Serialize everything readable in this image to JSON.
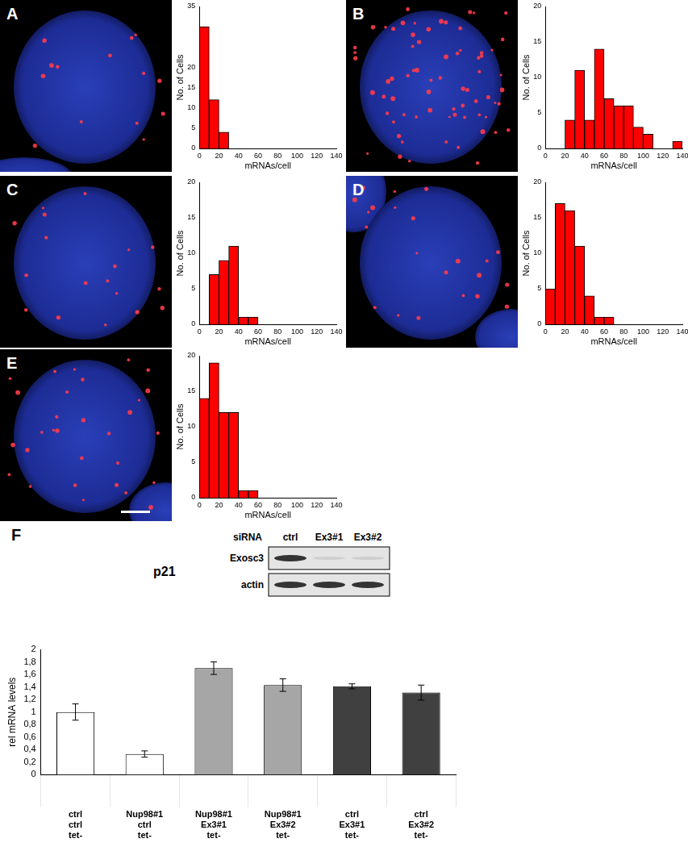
{
  "panel_labels": [
    "A",
    "B",
    "C",
    "D",
    "E",
    "F"
  ],
  "chart_data": [
    {
      "type": "histogram",
      "bins": [
        0,
        10,
        20,
        30,
        40,
        50,
        60,
        70,
        80,
        90,
        100,
        110,
        120,
        130,
        140
      ],
      "counts": [
        30,
        12,
        4,
        0,
        0,
        0,
        0,
        0,
        0,
        0,
        0,
        0,
        0,
        0
      ],
      "color": "#ff0000",
      "xlabel": "mRNAs/cell",
      "ylabel": "No. of Cells",
      "xlim": [
        0,
        140
      ],
      "xticks": [
        0,
        20,
        40,
        60,
        80,
        100,
        120,
        140
      ],
      "ylim": [
        0,
        35
      ],
      "yticks": [
        0,
        5,
        10,
        15,
        20,
        35
      ],
      "grid": false
    },
    {
      "type": "histogram",
      "bins": [
        0,
        10,
        20,
        30,
        40,
        50,
        60,
        70,
        80,
        90,
        100,
        110,
        120,
        130,
        140
      ],
      "counts": [
        0,
        0,
        4,
        11,
        4,
        14,
        7,
        6,
        6,
        3,
        2,
        0,
        0,
        1
      ],
      "color": "#ff0000",
      "xlabel": "mRNAs/cell",
      "ylabel": "No. of Cells",
      "xlim": [
        0,
        140
      ],
      "xticks": [
        0,
        20,
        40,
        60,
        80,
        100,
        120,
        140
      ],
      "ylim": [
        0,
        20
      ],
      "yticks": [
        0,
        5,
        10,
        15,
        20
      ],
      "grid": false
    },
    {
      "type": "histogram",
      "bins": [
        0,
        10,
        20,
        30,
        40,
        50,
        60,
        70,
        80,
        90,
        100,
        110,
        120,
        130,
        140
      ],
      "counts": [
        0,
        7,
        9,
        11,
        1,
        1,
        0,
        0,
        0,
        0,
        0,
        0,
        0,
        0
      ],
      "color": "#ff0000",
      "xlabel": "mRNAs/cell",
      "ylabel": "No. of Cells",
      "xlim": [
        0,
        140
      ],
      "xticks": [
        0,
        20,
        40,
        60,
        80,
        100,
        120,
        140
      ],
      "ylim": [
        0,
        20
      ],
      "yticks": [
        0,
        5,
        10,
        15,
        20
      ],
      "grid": false
    },
    {
      "type": "histogram",
      "bins": [
        0,
        10,
        20,
        30,
        40,
        50,
        60,
        70,
        80,
        90,
        100,
        110,
        120,
        130,
        140
      ],
      "counts": [
        5,
        17,
        16,
        11,
        4,
        1,
        1,
        0,
        0,
        0,
        0,
        0,
        0,
        0
      ],
      "color": "#ff0000",
      "xlabel": "mRNAs/cell",
      "ylabel": "No. of Cells",
      "xlim": [
        0,
        140
      ],
      "xticks": [
        0,
        20,
        40,
        60,
        80,
        100,
        120,
        140
      ],
      "ylim": [
        0,
        20
      ],
      "yticks": [
        0,
        5,
        10,
        15,
        20
      ],
      "grid": false
    },
    {
      "type": "histogram",
      "bins": [
        0,
        10,
        20,
        30,
        40,
        50,
        60,
        70,
        80,
        90,
        100,
        110,
        120,
        130,
        140
      ],
      "counts": [
        14,
        19,
        12,
        12,
        1,
        1,
        0,
        0,
        0,
        0,
        0,
        0,
        0,
        0
      ],
      "color": "#ff0000",
      "xlabel": "mRNAs/cell",
      "ylabel": "No. of Cells",
      "xlim": [
        0,
        140
      ],
      "xticks": [
        0,
        20,
        40,
        60,
        80,
        100,
        120,
        140
      ],
      "ylim": [
        0,
        20
      ],
      "yticks": [
        0,
        5,
        10,
        15,
        20
      ],
      "grid": false
    },
    {
      "type": "bar",
      "title": "p21",
      "ylabel": "rel mRNA levels",
      "categories": [
        [
          "ctrl",
          "ctrl",
          "tet-"
        ],
        [
          "Nup98#1",
          "ctrl",
          "tet-"
        ],
        [
          "Nup98#1",
          "Ex3#1",
          "tet-"
        ],
        [
          "Nup98#1",
          "Ex3#2",
          "tet-"
        ],
        [
          "ctrl",
          "Ex3#1",
          "tet-"
        ],
        [
          "ctrl",
          "Ex3#2",
          "tet-"
        ]
      ],
      "values": [
        1.0,
        0.33,
        1.7,
        1.43,
        1.41,
        1.31
      ],
      "errors": [
        0.13,
        0.05,
        0.1,
        0.1,
        0.04,
        0.12
      ],
      "colors": [
        "#ffffff",
        "#ffffff",
        "#a6a6a6",
        "#a6a6a6",
        "#404040",
        "#404040"
      ],
      "ylim": [
        0,
        2
      ],
      "yticks": [
        {
          "value": 0,
          "label": "0"
        },
        {
          "value": 0.2,
          "label": "0,2"
        },
        {
          "value": 0.4,
          "label": "0,4"
        },
        {
          "value": 0.6,
          "label": "0,6"
        },
        {
          "value": 0.8,
          "label": "0,8"
        },
        {
          "value": 1,
          "label": "1"
        },
        {
          "value": 1.2,
          "label": "1,2"
        },
        {
          "value": 1.4,
          "label": "1,4"
        },
        {
          "value": 1.6,
          "label": "1,6"
        },
        {
          "value": 1.8,
          "label": "1,8"
        },
        {
          "value": 2,
          "label": "2"
        }
      ],
      "grid": false
    }
  ],
  "blot": {
    "header": "siRNA",
    "lanes": [
      "ctrl",
      "Ex3#1",
      "Ex3#2"
    ],
    "rows": [
      "Exosc3",
      "actin"
    ]
  }
}
